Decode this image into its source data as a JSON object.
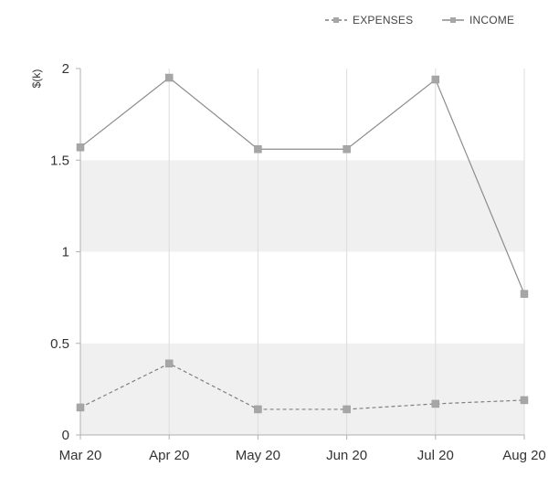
{
  "chart_data": {
    "type": "line",
    "ylabel": "$(k)",
    "ylim": [
      0,
      2
    ],
    "yticks": [
      "0",
      "0.5",
      "1",
      "1.5",
      "2"
    ],
    "categories": [
      "Mar 20",
      "Apr 20",
      "May 20",
      "Jun 20",
      "Jul 20",
      "Aug 20"
    ],
    "series": [
      {
        "name": "EXPENSES",
        "values": [
          0.15,
          0.39,
          0.14,
          0.14,
          0.17,
          0.19
        ],
        "color": "#7f7f7f",
        "line_style": "dashed"
      },
      {
        "name": "INCOME",
        "values": [
          1.57,
          1.95,
          1.56,
          1.56,
          1.94,
          0.77
        ],
        "color": "#8c8c8c",
        "line_style": "solid"
      }
    ],
    "legend_position": "top-right",
    "band_colors": [
      "#f0f0f0",
      "#ffffff"
    ],
    "grid": "vertical"
  }
}
